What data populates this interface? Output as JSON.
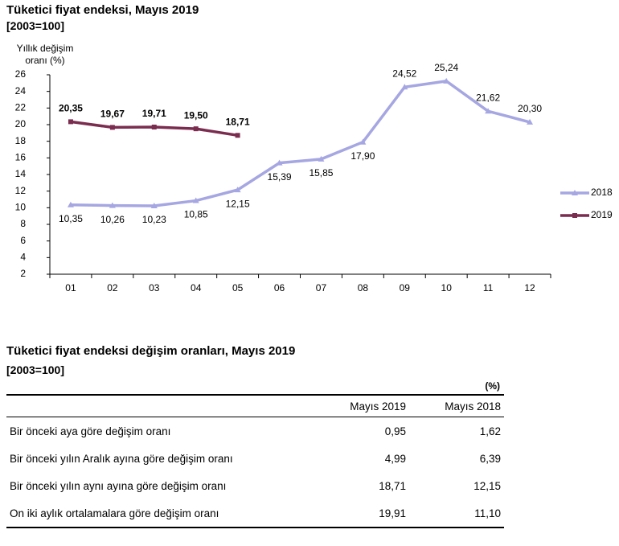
{
  "chart_data": {
    "type": "line",
    "title": "Tüketici fiyat endeksi, Mayıs 2019",
    "subtitle": "[2003=100]",
    "ylabel": "Yıllık değişim oranı (%)",
    "categories": [
      "01",
      "02",
      "03",
      "04",
      "05",
      "06",
      "07",
      "08",
      "09",
      "10",
      "11",
      "12"
    ],
    "series": [
      {
        "name": "2018",
        "color": "#a6a6e2",
        "marker": "triangle",
        "values": [
          10.35,
          10.26,
          10.23,
          10.85,
          12.15,
          15.39,
          15.85,
          17.9,
          24.52,
          25.24,
          21.62,
          20.3
        ],
        "value_labels": [
          "10,35",
          "10,26",
          "10,23",
          "10,85",
          "12,15",
          "15,39",
          "15,85",
          "17,90",
          "24,52",
          "25,24",
          "21,62",
          "20,30"
        ]
      },
      {
        "name": "2019",
        "color": "#7b2d50",
        "marker": "square",
        "values": [
          20.35,
          19.67,
          19.71,
          19.5,
          18.71,
          null,
          null,
          null,
          null,
          null,
          null,
          null
        ],
        "value_labels": [
          "20,35",
          "19,67",
          "19,71",
          "19,50",
          "18,71",
          null,
          null,
          null,
          null,
          null,
          null,
          null
        ]
      }
    ],
    "ylim": [
      2,
      26
    ],
    "yticks": [
      2,
      4,
      6,
      8,
      10,
      12,
      14,
      16,
      18,
      20,
      22,
      24,
      26
    ],
    "grid": false,
    "legend": "right"
  },
  "table": {
    "title": "Tüketici fiyat endeksi değişim oranları, Mayıs 2019",
    "subtitle": "[2003=100]",
    "unit": "(%)",
    "columns": [
      "Mayıs 2019",
      "Mayıs 2018"
    ],
    "rows": [
      [
        "Bir önceki aya göre değişim oranı",
        "0,95",
        "1,62"
      ],
      [
        "Bir önceki yılın Aralık ayına göre değişim oranı",
        "4,99",
        "6,39"
      ],
      [
        "Bir önceki yılın aynı ayına göre değişim oranı",
        "18,71",
        "12,15"
      ],
      [
        "On iki aylık ortalamalara göre değişim oranı",
        "19,91",
        "11,10"
      ]
    ]
  }
}
